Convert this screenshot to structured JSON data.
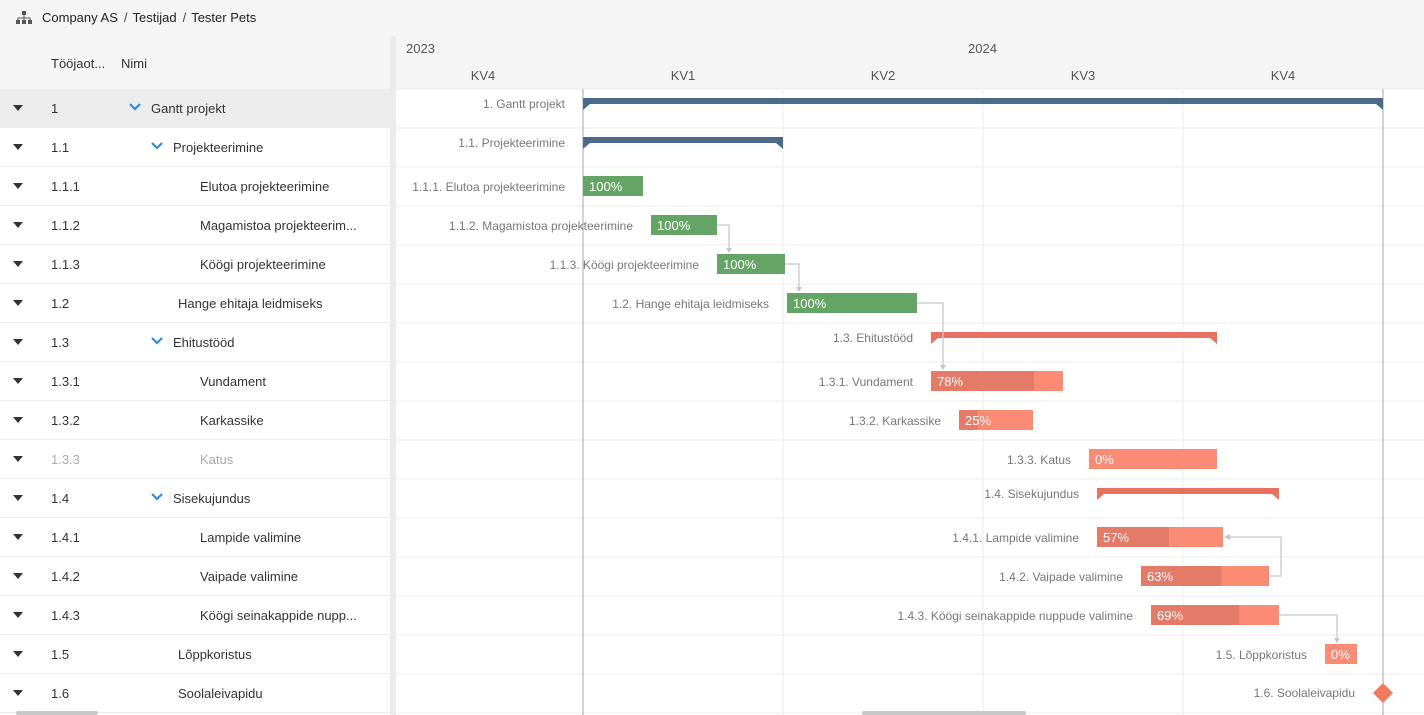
{
  "breadcrumb": {
    "items": [
      "Company AS",
      "Testijad",
      "Tester Pets"
    ]
  },
  "columns": {
    "wbs": "Tööjaot...",
    "name": "Nimi"
  },
  "timeline": {
    "years": [
      "2023",
      "2024"
    ],
    "quarters": [
      "KV4",
      "KV1",
      "KV2",
      "KV3",
      "KV4"
    ]
  },
  "rows": [
    {
      "wbs": "1",
      "name": "Gantt projekt",
      "level": 0,
      "summary": true,
      "selected": true
    },
    {
      "wbs": "1.1",
      "name": "Projekteerimine",
      "level": 1,
      "summary": true
    },
    {
      "wbs": "1.1.1",
      "name": "Elutoa projekteerimine",
      "level": 2
    },
    {
      "wbs": "1.1.2",
      "name": "Magamistoa projekteerim...",
      "level": 2
    },
    {
      "wbs": "1.1.3",
      "name": "Köögi projekteerimine",
      "level": 2
    },
    {
      "wbs": "1.2",
      "name": "Hange ehitaja leidmiseks",
      "level": 1
    },
    {
      "wbs": "1.3",
      "name": "Ehitustööd",
      "level": 1,
      "summary": true
    },
    {
      "wbs": "1.3.1",
      "name": "Vundament",
      "level": 2
    },
    {
      "wbs": "1.3.2",
      "name": "Karkassike",
      "level": 2
    },
    {
      "wbs": "1.3.3",
      "name": "Katus",
      "level": 2,
      "dim": true
    },
    {
      "wbs": "1.4",
      "name": "Sisekujundus",
      "level": 1,
      "summary": true
    },
    {
      "wbs": "1.4.1",
      "name": "Lampide valimine",
      "level": 2
    },
    {
      "wbs": "1.4.2",
      "name": "Vaipade valimine",
      "level": 2
    },
    {
      "wbs": "1.4.3",
      "name": "Köögi seinakappide nupp...",
      "level": 2
    },
    {
      "wbs": "1.5",
      "name": "Lõppkoristus",
      "level": 1
    },
    {
      "wbs": "1.6",
      "name": "Soolaleivapidu",
      "level": 1
    }
  ],
  "bars": [
    {
      "label": "1. Gantt projekt",
      "type": "summary",
      "start": 0.0,
      "end": 4.0,
      "color": "#4a6b8c"
    },
    {
      "label": "1.1. Projekteerimine",
      "type": "summary",
      "start": 0.0,
      "end": 1.0,
      "color": "#4a6b8c"
    },
    {
      "label": "1.1.1. Elutoa projekteerimine",
      "type": "task",
      "start": 0.0,
      "end": 0.3,
      "progress": "100%",
      "color": "#64a565"
    },
    {
      "label": "1.1.2. Magamistoa projekteerimine",
      "type": "task",
      "start": 0.34,
      "end": 0.67,
      "progress": "100%",
      "color": "#64a565"
    },
    {
      "label": "1.1.3. Köögi projekteerimine",
      "type": "task",
      "start": 0.67,
      "end": 1.01,
      "progress": "100%",
      "color": "#64a565"
    },
    {
      "label": "1.2. Hange ehitaja leidmiseks",
      "type": "task",
      "start": 1.02,
      "end": 1.67,
      "progress": "100%",
      "color": "#64a565"
    },
    {
      "label": "1.3. Ehitustööd",
      "type": "summary",
      "start": 1.74,
      "end": 3.17,
      "color": "#e8715f"
    },
    {
      "label": "1.3.1. Vundament",
      "type": "task",
      "start": 1.74,
      "end": 2.4,
      "progress": "78%",
      "color": "#e47b69",
      "done": 0.78
    },
    {
      "label": "1.3.2. Karkassike",
      "type": "task",
      "start": 1.88,
      "end": 2.25,
      "progress": "25%",
      "color": "#e47b69",
      "done": 0.25
    },
    {
      "label": "1.3.3. Katus",
      "type": "task",
      "start": 2.53,
      "end": 3.17,
      "progress": "0%",
      "color": "#e47b69",
      "done": 0
    },
    {
      "label": "1.4. Sisekujundus",
      "type": "summary",
      "start": 2.57,
      "end": 3.48,
      "color": "#e8715f"
    },
    {
      "label": "1.4.1. Lampide valimine",
      "type": "task",
      "start": 2.57,
      "end": 3.2,
      "progress": "57%",
      "color": "#e47b69",
      "done": 0.57
    },
    {
      "label": "1.4.2. Vaipade valimine",
      "type": "task",
      "start": 2.79,
      "end": 3.43,
      "progress": "63%",
      "color": "#e47b69",
      "done": 0.63
    },
    {
      "label": "1.4.3. Köögi seinakappide nuppude valimine",
      "type": "task",
      "start": 2.84,
      "end": 3.48,
      "progress": "69%",
      "color": "#e47b69",
      "done": 0.69
    },
    {
      "label": "1.5. Lõppkoristus",
      "type": "task",
      "start": 3.71,
      "end": 3.87,
      "progress": "0%",
      "color": "#e47b69",
      "done": 0
    },
    {
      "label": "1.6. Soolaleivapidu",
      "type": "milestone",
      "start": 4.0,
      "end": 4.0,
      "color": "#f07a5e"
    }
  ],
  "links": [
    [
      3,
      4
    ],
    [
      4,
      5
    ],
    [
      5,
      7
    ],
    [
      12,
      11
    ],
    [
      13,
      14
    ]
  ]
}
